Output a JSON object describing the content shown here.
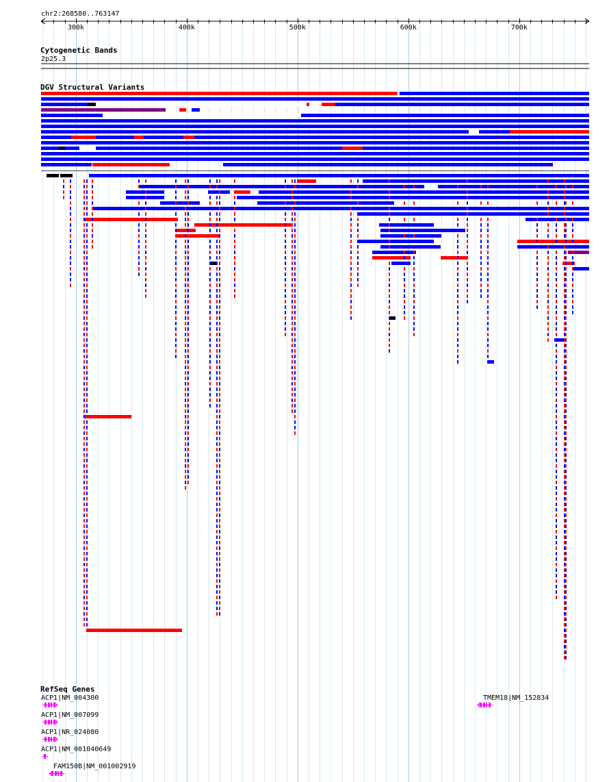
{
  "region": {
    "label": "chr2:268580..763147",
    "start": 268580,
    "end": 763147,
    "ticks": [
      {
        "pos": 300000,
        "label": "300k"
      },
      {
        "pos": 400000,
        "label": "400k"
      },
      {
        "pos": 500000,
        "label": "500k"
      },
      {
        "pos": 600000,
        "label": "600k"
      },
      {
        "pos": 700000,
        "label": "700k"
      }
    ]
  },
  "tracks": {
    "cyto": {
      "title": "Cytogenetic Bands",
      "band": "2p25.3"
    },
    "dgv": {
      "title": "DGV Structural Variants",
      "colors": {
        "gain": "#0000ff",
        "loss": "#ff0000",
        "both": "#000000",
        "inversion": "#800080"
      },
      "full_rows": [
        {
          "start": 268580,
          "end": 590000,
          "type": "loss"
        },
        {
          "start": 592000,
          "end": 763147,
          "type": "gain"
        },
        {
          "start": 268580,
          "end": 763147,
          "type": "gain"
        },
        {
          "start": 268580,
          "end": 763147,
          "type": "gain"
        },
        {
          "start": 268580,
          "end": 381000,
          "type": "inversion"
        },
        {
          "start": 268580,
          "end": 763147,
          "type": "gain"
        },
        {
          "start": 268580,
          "end": 763147,
          "type": "gain"
        },
        {
          "start": 268580,
          "end": 763147,
          "type": "gain"
        },
        {
          "start": 268580,
          "end": 763147,
          "type": "gain"
        },
        {
          "start": 268580,
          "end": 763147,
          "type": "gain"
        },
        {
          "start": 268580,
          "end": 763147,
          "type": "gain"
        },
        {
          "start": 268580,
          "end": 763147,
          "type": "gain"
        },
        {
          "start": 268580,
          "end": 763147,
          "type": "gain"
        },
        {
          "start": 268580,
          "end": 763147,
          "type": "gain"
        }
      ]
    },
    "refseq": {
      "title": "RefSeq Genes",
      "genes": [
        {
          "label": "ACP1|NM_004300",
          "strand": "+"
        },
        {
          "label": "ACP1|NM_007099",
          "strand": "+"
        },
        {
          "label": "ACP1|NR_024080",
          "strand": "+"
        },
        {
          "label": "ACP1|NM_001040649",
          "strand": "+"
        },
        {
          "label": "FAM150B|NM_001002919",
          "strand": "-"
        },
        {
          "label": "TMEM18|NM_152834",
          "strand": "-"
        }
      ]
    }
  }
}
